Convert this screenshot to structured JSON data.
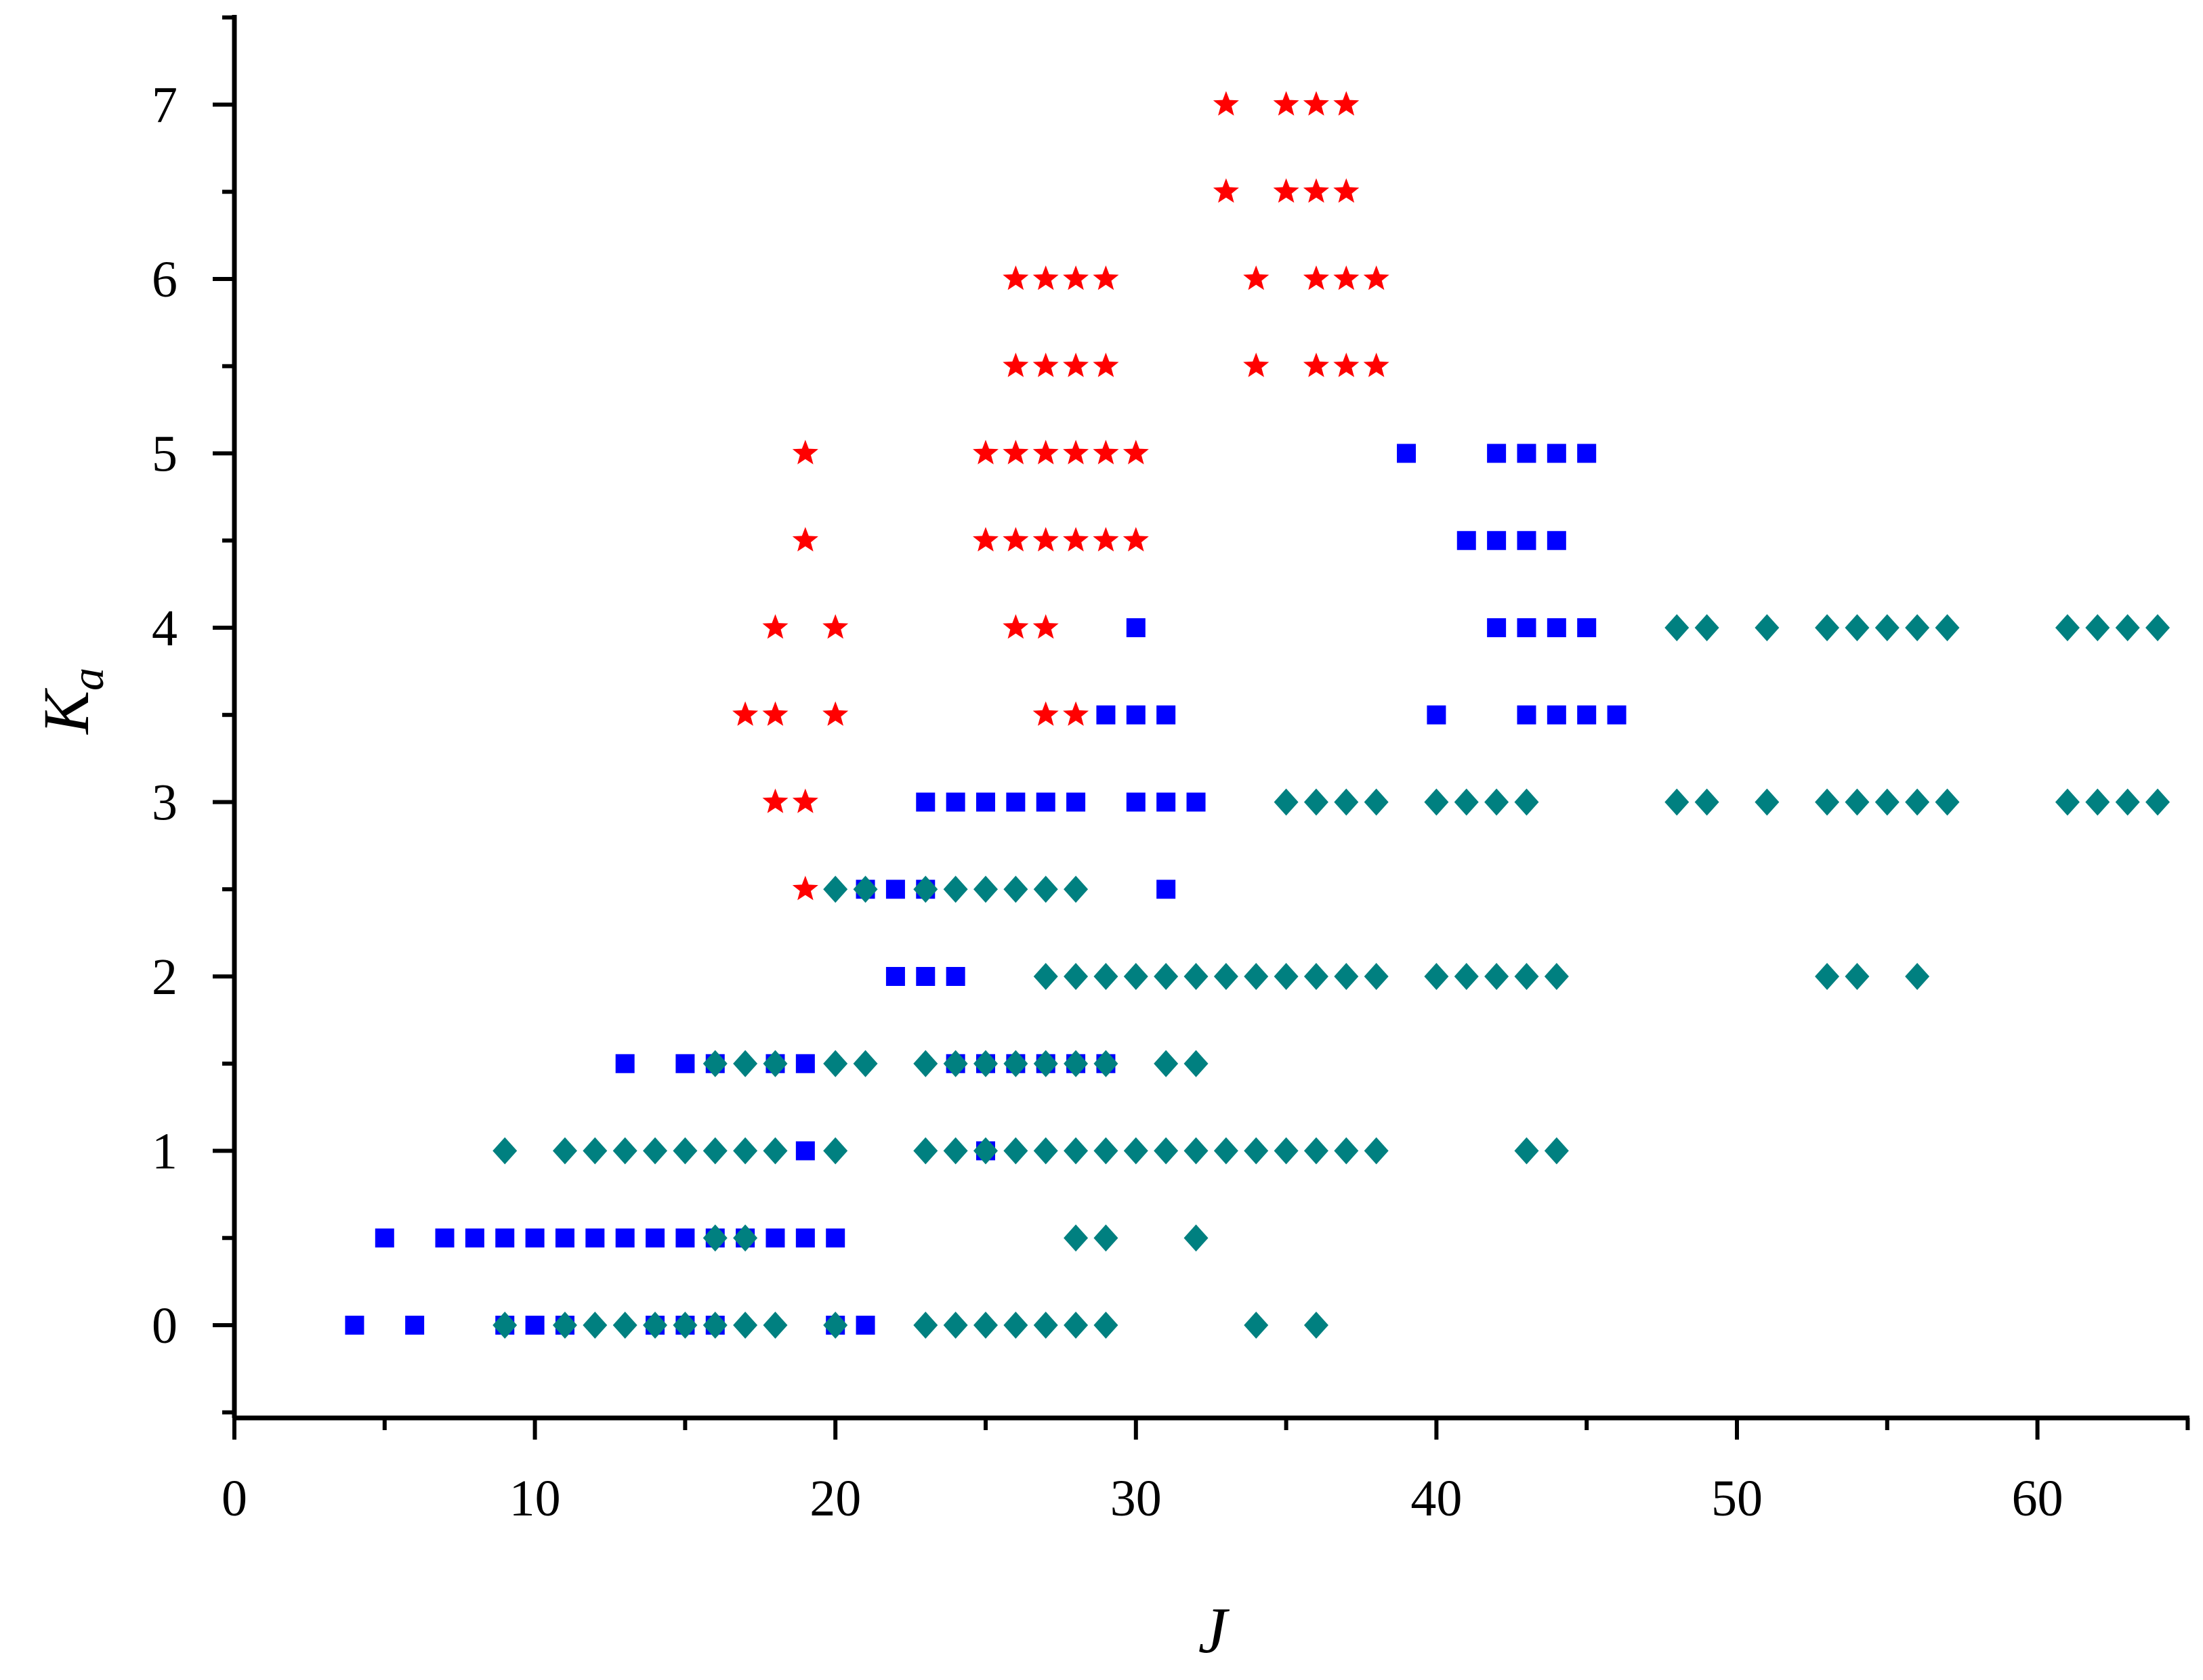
{
  "chart_data": {
    "type": "scatter",
    "title": "",
    "xlabel": "J",
    "ylabel": {
      "base": "K",
      "sub": "a"
    },
    "xlim": [
      0,
      65
    ],
    "ylim": [
      -0.5,
      7.5
    ],
    "xticks": [
      0,
      10,
      20,
      30,
      40,
      50,
      60
    ],
    "yticks": [
      0,
      1,
      2,
      3,
      4,
      5,
      6,
      7
    ],
    "x_minor_step": 5,
    "y_minor_step": 0.5,
    "grid": false,
    "legend": "none",
    "series": [
      {
        "marker": "star",
        "color": "#ff0000",
        "points": [
          [
            33,
            7
          ],
          [
            35,
            7
          ],
          [
            36,
            7
          ],
          [
            37,
            7
          ],
          [
            33,
            6.5
          ],
          [
            35,
            6.5
          ],
          [
            36,
            6.5
          ],
          [
            37,
            6.5
          ],
          [
            26,
            6
          ],
          [
            27,
            6
          ],
          [
            28,
            6
          ],
          [
            29,
            6
          ],
          [
            34,
            6
          ],
          [
            36,
            6
          ],
          [
            37,
            6
          ],
          [
            38,
            6
          ],
          [
            26,
            5.5
          ],
          [
            27,
            5.5
          ],
          [
            28,
            5.5
          ],
          [
            29,
            5.5
          ],
          [
            34,
            5.5
          ],
          [
            36,
            5.5
          ],
          [
            37,
            5.5
          ],
          [
            38,
            5.5
          ],
          [
            19,
            5
          ],
          [
            25,
            5
          ],
          [
            26,
            5
          ],
          [
            27,
            5
          ],
          [
            28,
            5
          ],
          [
            29,
            5
          ],
          [
            30,
            5
          ],
          [
            19,
            4.5
          ],
          [
            25,
            4.5
          ],
          [
            26,
            4.5
          ],
          [
            27,
            4.5
          ],
          [
            28,
            4.5
          ],
          [
            29,
            4.5
          ],
          [
            30,
            4.5
          ],
          [
            18,
            4
          ],
          [
            20,
            4
          ],
          [
            26,
            4
          ],
          [
            27,
            4
          ],
          [
            17,
            3.5
          ],
          [
            18,
            3.5
          ],
          [
            20,
            3.5
          ],
          [
            27,
            3.5
          ],
          [
            28,
            3.5
          ],
          [
            18,
            3
          ],
          [
            19,
            3
          ],
          [
            19,
            2.5
          ]
        ]
      },
      {
        "marker": "square",
        "color": "#0000ff",
        "points": [
          [
            39,
            5
          ],
          [
            42,
            5
          ],
          [
            43,
            5
          ],
          [
            44,
            5
          ],
          [
            45,
            5
          ],
          [
            41,
            4.5
          ],
          [
            42,
            4.5
          ],
          [
            43,
            4.5
          ],
          [
            44,
            4.5
          ],
          [
            30,
            4
          ],
          [
            42,
            4
          ],
          [
            43,
            4
          ],
          [
            44,
            4
          ],
          [
            45,
            4
          ],
          [
            29,
            3.5
          ],
          [
            30,
            3.5
          ],
          [
            31,
            3.5
          ],
          [
            40,
            3.5
          ],
          [
            43,
            3.5
          ],
          [
            44,
            3.5
          ],
          [
            45,
            3.5
          ],
          [
            46,
            3.5
          ],
          [
            23,
            3
          ],
          [
            24,
            3
          ],
          [
            25,
            3
          ],
          [
            26,
            3
          ],
          [
            27,
            3
          ],
          [
            28,
            3
          ],
          [
            30,
            3
          ],
          [
            31,
            3
          ],
          [
            32,
            3
          ],
          [
            21,
            2.5
          ],
          [
            22,
            2.5
          ],
          [
            23,
            2.5
          ],
          [
            31,
            2.5
          ],
          [
            22,
            2
          ],
          [
            23,
            2
          ],
          [
            24,
            2
          ],
          [
            13,
            1.5
          ],
          [
            15,
            1.5
          ],
          [
            16,
            1.5
          ],
          [
            18,
            1.5
          ],
          [
            19,
            1.5
          ],
          [
            24,
            1.5
          ],
          [
            25,
            1.5
          ],
          [
            26,
            1.5
          ],
          [
            27,
            1.5
          ],
          [
            28,
            1.5
          ],
          [
            29,
            1.5
          ],
          [
            19,
            1
          ],
          [
            25,
            1
          ],
          [
            5,
            0.5
          ],
          [
            7,
            0.5
          ],
          [
            8,
            0.5
          ],
          [
            9,
            0.5
          ],
          [
            10,
            0.5
          ],
          [
            11,
            0.5
          ],
          [
            12,
            0.5
          ],
          [
            13,
            0.5
          ],
          [
            14,
            0.5
          ],
          [
            15,
            0.5
          ],
          [
            16,
            0.5
          ],
          [
            17,
            0.5
          ],
          [
            18,
            0.5
          ],
          [
            19,
            0.5
          ],
          [
            20,
            0.5
          ],
          [
            4,
            0
          ],
          [
            6,
            0
          ],
          [
            9,
            0
          ],
          [
            10,
            0
          ],
          [
            11,
            0
          ],
          [
            14,
            0
          ],
          [
            15,
            0
          ],
          [
            16,
            0
          ],
          [
            20,
            0
          ],
          [
            21,
            0
          ]
        ]
      },
      {
        "marker": "diamond",
        "color": "#008080",
        "points": [
          [
            48,
            4
          ],
          [
            49,
            4
          ],
          [
            51,
            4
          ],
          [
            53,
            4
          ],
          [
            54,
            4
          ],
          [
            55,
            4
          ],
          [
            56,
            4
          ],
          [
            57,
            4
          ],
          [
            61,
            4
          ],
          [
            62,
            4
          ],
          [
            63,
            4
          ],
          [
            64,
            4
          ],
          [
            35,
            3
          ],
          [
            36,
            3
          ],
          [
            37,
            3
          ],
          [
            38,
            3
          ],
          [
            40,
            3
          ],
          [
            41,
            3
          ],
          [
            42,
            3
          ],
          [
            43,
            3
          ],
          [
            48,
            3
          ],
          [
            49,
            3
          ],
          [
            51,
            3
          ],
          [
            53,
            3
          ],
          [
            54,
            3
          ],
          [
            55,
            3
          ],
          [
            56,
            3
          ],
          [
            57,
            3
          ],
          [
            61,
            3
          ],
          [
            62,
            3
          ],
          [
            63,
            3
          ],
          [
            64,
            3
          ],
          [
            20,
            2.5
          ],
          [
            21,
            2.5
          ],
          [
            23,
            2.5
          ],
          [
            24,
            2.5
          ],
          [
            25,
            2.5
          ],
          [
            26,
            2.5
          ],
          [
            27,
            2.5
          ],
          [
            28,
            2.5
          ],
          [
            27,
            2
          ],
          [
            28,
            2
          ],
          [
            29,
            2
          ],
          [
            30,
            2
          ],
          [
            31,
            2
          ],
          [
            32,
            2
          ],
          [
            33,
            2
          ],
          [
            34,
            2
          ],
          [
            35,
            2
          ],
          [
            36,
            2
          ],
          [
            37,
            2
          ],
          [
            38,
            2
          ],
          [
            40,
            2
          ],
          [
            41,
            2
          ],
          [
            42,
            2
          ],
          [
            43,
            2
          ],
          [
            44,
            2
          ],
          [
            53,
            2
          ],
          [
            54,
            2
          ],
          [
            56,
            2
          ],
          [
            16,
            1.5
          ],
          [
            17,
            1.5
          ],
          [
            18,
            1.5
          ],
          [
            20,
            1.5
          ],
          [
            21,
            1.5
          ],
          [
            23,
            1.5
          ],
          [
            24,
            1.5
          ],
          [
            25,
            1.5
          ],
          [
            26,
            1.5
          ],
          [
            27,
            1.5
          ],
          [
            28,
            1.5
          ],
          [
            29,
            1.5
          ],
          [
            31,
            1.5
          ],
          [
            32,
            1.5
          ],
          [
            9,
            1
          ],
          [
            11,
            1
          ],
          [
            12,
            1
          ],
          [
            13,
            1
          ],
          [
            14,
            1
          ],
          [
            15,
            1
          ],
          [
            16,
            1
          ],
          [
            17,
            1
          ],
          [
            18,
            1
          ],
          [
            20,
            1
          ],
          [
            23,
            1
          ],
          [
            24,
            1
          ],
          [
            25,
            1
          ],
          [
            26,
            1
          ],
          [
            27,
            1
          ],
          [
            28,
            1
          ],
          [
            29,
            1
          ],
          [
            30,
            1
          ],
          [
            31,
            1
          ],
          [
            32,
            1
          ],
          [
            33,
            1
          ],
          [
            34,
            1
          ],
          [
            35,
            1
          ],
          [
            36,
            1
          ],
          [
            37,
            1
          ],
          [
            38,
            1
          ],
          [
            43,
            1
          ],
          [
            44,
            1
          ],
          [
            16,
            0.5
          ],
          [
            17,
            0.5
          ],
          [
            28,
            0.5
          ],
          [
            29,
            0.5
          ],
          [
            32,
            0.5
          ],
          [
            9,
            0
          ],
          [
            11,
            0
          ],
          [
            12,
            0
          ],
          [
            13,
            0
          ],
          [
            14,
            0
          ],
          [
            15,
            0
          ],
          [
            16,
            0
          ],
          [
            17,
            0
          ],
          [
            18,
            0
          ],
          [
            20,
            0
          ],
          [
            23,
            0
          ],
          [
            24,
            0
          ],
          [
            25,
            0
          ],
          [
            26,
            0
          ],
          [
            27,
            0
          ],
          [
            28,
            0
          ],
          [
            29,
            0
          ],
          [
            34,
            0
          ],
          [
            36,
            0
          ]
        ]
      }
    ]
  }
}
